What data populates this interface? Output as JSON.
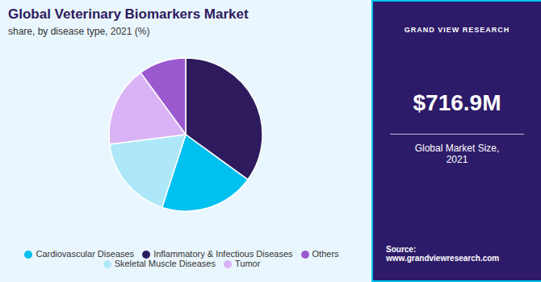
{
  "chart_data": {
    "type": "pie",
    "title": "Global Veterinary Biomarkers Market",
    "subtitle": "share, by disease type, 2021 (%)",
    "categories": [
      "Inflammatory & Infectious Diseases",
      "Cardiovascular Diseases",
      "Skeletal Muscle Diseases",
      "Tumor",
      "Others"
    ],
    "values": [
      35,
      20,
      18,
      17,
      10
    ],
    "colors": [
      "#2d1b5e",
      "#00c0f0",
      "#aee8f8",
      "#d9b3f5",
      "#9b59d0"
    ],
    "legend": "bottom",
    "annotations": [
      "GRAND VIEW RESEARCH",
      "$716.9M",
      "Global Market Size,\n2021",
      "Source:\nwww.grandviewresearch.com"
    ]
  }
}
